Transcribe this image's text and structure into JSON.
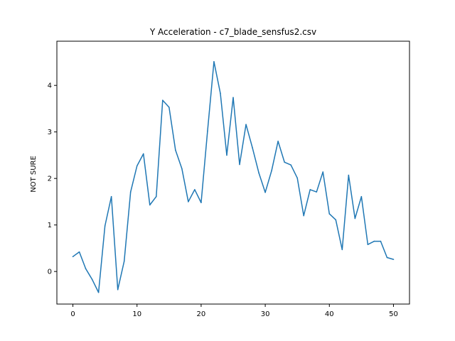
{
  "chart_data": {
    "type": "line",
    "title": "Y Acceleration - c7_blade_sensfus2.csv",
    "xlabel": "",
    "ylabel": "NOT SURE",
    "xlim": [
      -2.5,
      52.5
    ],
    "ylim": [
      -0.7,
      4.95
    ],
    "xticks": [
      0,
      10,
      20,
      30,
      40,
      50
    ],
    "yticks": [
      0,
      1,
      2,
      3,
      4
    ],
    "grid": false,
    "line_color": "#1f77b4",
    "series": [
      {
        "x": [
          0,
          1,
          2,
          3,
          4,
          5,
          6,
          7,
          8,
          9,
          10,
          11,
          12,
          13,
          14,
          15,
          16,
          17,
          18,
          19,
          20,
          21,
          22,
          23,
          24,
          25,
          26,
          27,
          28,
          29,
          30,
          31,
          32,
          33,
          34,
          35,
          36,
          37,
          38,
          39,
          40,
          41,
          42,
          43,
          44,
          45,
          46,
          47,
          48,
          49,
          50
        ],
        "values": [
          0.32,
          0.42,
          0.06,
          -0.17,
          -0.45,
          0.98,
          1.61,
          -0.39,
          0.22,
          1.71,
          2.27,
          2.53,
          1.43,
          1.61,
          3.68,
          3.53,
          2.61,
          2.21,
          1.5,
          1.76,
          1.48,
          3.02,
          4.51,
          3.83,
          2.5,
          3.74,
          2.3,
          3.16,
          2.66,
          2.12,
          1.7,
          2.17,
          2.8,
          2.35,
          2.29,
          2.01,
          1.2,
          1.76,
          1.71,
          2.14,
          1.24,
          1.11,
          0.47,
          2.07,
          1.14,
          1.61,
          0.58,
          0.65,
          0.65,
          0.3,
          0.26
        ]
      }
    ]
  }
}
